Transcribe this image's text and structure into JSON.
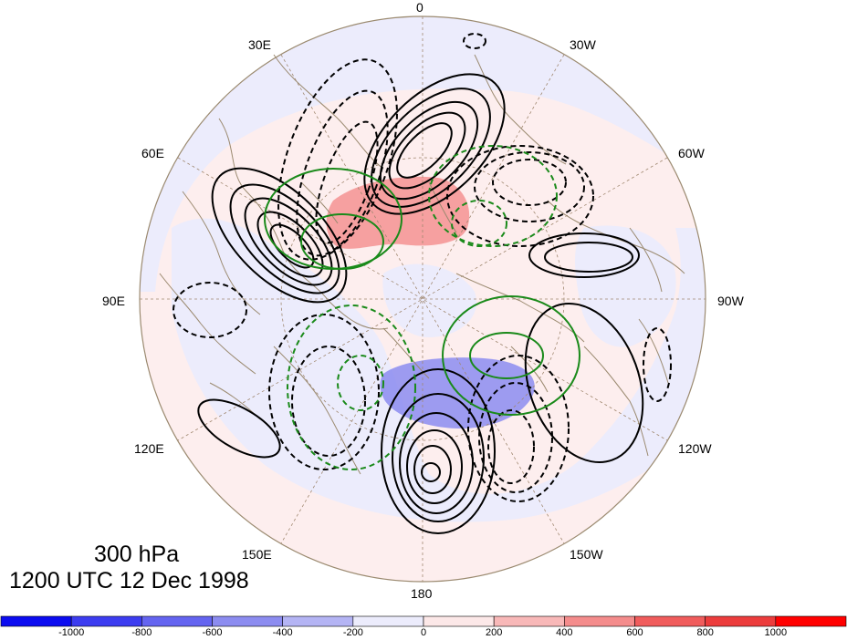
{
  "title": {
    "level": "300 hPa",
    "time": "1200 UTC 12 Dec 1998"
  },
  "longitude_labels": [
    "0",
    "30W",
    "60W",
    "90W",
    "120W",
    "150W",
    "180",
    "150E",
    "120E",
    "90E",
    "60E",
    "30E"
  ],
  "colorbar": {
    "labels": [
      "-1000",
      "-800",
      "-600",
      "-400",
      "-200",
      "0",
      "200",
      "400",
      "600",
      "800",
      "1000"
    ],
    "colors": [
      "#0c0cf0",
      "#3c3cf0",
      "#6464f0",
      "#8c8cf0",
      "#b4b4f4",
      "#ececfc",
      "#fce8e8",
      "#f8b8b8",
      "#f48c8c",
      "#f05c5c",
      "#ec3c3c",
      "#ff0000"
    ]
  },
  "colors": {
    "coast": "#9b8a70",
    "grid": "#a08870",
    "contour_solid": "#000000",
    "contour_green": "#1a8a1a",
    "neg_fill": "#8c8cf0",
    "pos_fill": "#f48c8c"
  }
}
